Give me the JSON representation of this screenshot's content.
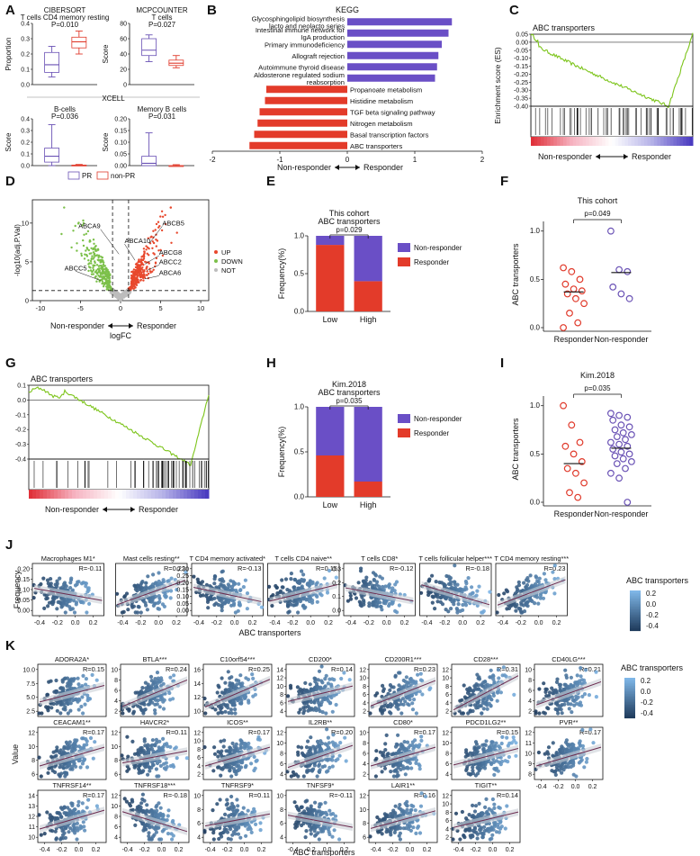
{
  "panel_letters": [
    "A",
    "B",
    "C",
    "D",
    "E",
    "F",
    "G",
    "H",
    "I",
    "J",
    "K"
  ],
  "colors": {
    "pr": "#6a52b5",
    "nonpr": "#e03a2b",
    "bar_pos": "#6a4fc6",
    "bar_neg": "#e33b2a",
    "es_line": "#7cc41a",
    "volcano_up": "#e8482d",
    "volcano_down": "#7cc04a",
    "volcano_not": "#bdbdbd",
    "scatter_dark": "#1f3b5c",
    "scatter_light": "#7fb7e8"
  },
  "panelA": {
    "boxes": [
      {
        "title1": "CIBERSORT",
        "title2": "T cells CD4 memory resting",
        "pval": "P=0.010",
        "ylabel": "Proportion",
        "ticks": [
          "0.0",
          "0.1",
          "0.2",
          "0.3",
          "0.4"
        ],
        "ylim": [
          0,
          0.4
        ],
        "stats": [
          [
            0.05,
            0.08,
            0.13,
            0.21,
            0.25
          ],
          [
            0.2,
            0.24,
            0.28,
            0.31,
            0.35
          ]
        ]
      },
      {
        "title1": "MCPCOUNTER",
        "title2": "T cells",
        "pval": "P=0.027",
        "ylabel": "Score",
        "ticks": [
          "0",
          "20",
          "40",
          "60",
          "80"
        ],
        "ylim": [
          0,
          80
        ],
        "stats": [
          [
            30,
            38,
            45,
            60,
            65
          ],
          [
            22,
            25,
            28,
            32,
            38
          ]
        ]
      },
      {
        "title1": "B-cells",
        "title2": "",
        "pval": "P=0.036",
        "ylabel": "Score",
        "ticks": [
          "0.0",
          "0.1",
          "0.2",
          "0.3",
          "0.4"
        ],
        "ylim": [
          0,
          0.4
        ],
        "stats": [
          [
            0.0,
            0.03,
            0.08,
            0.15,
            0.35
          ],
          [
            0.0,
            0.0,
            0.0,
            0.005,
            0.01
          ]
        ]
      },
      {
        "title1": "Memory B cells",
        "title2": "",
        "pval": "P=0.031",
        "ylabel": "Score",
        "ticks": [
          "0.00",
          "0.05",
          "0.10",
          "0.15",
          "0.20"
        ],
        "ylim": [
          0,
          0.2
        ],
        "stats": [
          [
            0.0,
            0.0,
            0.01,
            0.04,
            0.14
          ],
          [
            0.0,
            0.0,
            0.0,
            0.0,
            0.004
          ]
        ]
      }
    ],
    "xcell_label": "XCELL",
    "legend": [
      "PR",
      "non-PR"
    ]
  },
  "panelB": {
    "title": "KEGG",
    "xticks": [
      "-2",
      "-1",
      "0",
      "1",
      "2"
    ],
    "xlim": [
      -2,
      2
    ],
    "arrow_left": "Non-responder",
    "arrow_right": "Responder",
    "chart_data": {
      "type": "bar",
      "categories": [
        "Glycosphingolipid biosynthesis lacto and neolacto series",
        "Intestinal immune network for IgA production",
        "Primary immunodeficiency",
        "Allograft rejection",
        "Autoimmune thyroid disease",
        "Aldosterone regulated sodium reabsorption",
        "Propanoate metabolism",
        "Histidine metabolism",
        "TGF beta signaling pathway",
        "Nitrogen metabolism",
        "Basal transcription factors",
        "ABC transporters"
      ],
      "values": [
        1.55,
        1.5,
        1.4,
        1.35,
        1.33,
        1.3,
        -1.2,
        -1.22,
        -1.3,
        -1.33,
        -1.38,
        -1.45
      ]
    },
    "labels": [
      [
        "Glycosphingolipid biosynthesis",
        "lacto and neolacto series"
      ],
      [
        "Intestinal immune network for",
        "IgA production"
      ],
      [
        "Primary immunodeficiency"
      ],
      [
        "Allograft rejection"
      ],
      [
        "Autoimmune thyroid disease"
      ],
      [
        "Aldosterone regulated sodium",
        "reabsorption"
      ],
      [
        "Propanoate metabolism"
      ],
      [
        "Histidine metabolism"
      ],
      [
        "TGF beta signaling pathway"
      ],
      [
        "Nitrogen metabolism"
      ],
      [
        "Basal transcription factors"
      ],
      [
        "ABC transporters"
      ]
    ]
  },
  "panelC": {
    "title": "ABC transporters",
    "ylabel": "Enrichment score (ES)",
    "ticks": [
      "0.05",
      "0.00",
      "-0.05",
      "-0.10",
      "-0.15",
      "-0.20",
      "-0.25",
      "-0.30",
      "-0.35",
      "-0.40"
    ],
    "left": "Non-responder",
    "right": "Responder"
  },
  "panelD": {
    "ylabel": "-log10(adj.P.Val)",
    "xlabel": "logFC",
    "xticks": [
      "-10",
      "-5",
      "0",
      "5",
      "10"
    ],
    "yticks": [
      "0",
      "5",
      "10"
    ],
    "genes": [
      "ABCA9",
      "ABCA10",
      "ABCB5",
      "ABCG8",
      "ABCC2",
      "ABCA6",
      "ABCC5"
    ],
    "legend": [
      "UP",
      "DOWN",
      "NOT"
    ],
    "left": "Non-responder",
    "right": "Responder"
  },
  "panelE": {
    "title1": "This cohort",
    "title2": "ABC transporters",
    "pval": "p=0.029",
    "ylabel": "Frequency(%)",
    "yticks": [
      "0.0",
      "0.5",
      "1.0"
    ],
    "chart_data": {
      "type": "bar",
      "categories": [
        "Low",
        "High"
      ],
      "series": [
        {
          "name": "Responder",
          "values": [
            0.88,
            0.4
          ]
        },
        {
          "name": "Non-responder",
          "values": [
            0.12,
            0.6
          ]
        }
      ]
    },
    "legend": [
      "Non-responder",
      "Responder"
    ]
  },
  "panelF": {
    "title": "This cohort",
    "pval": "p=0.049",
    "ylabel": "ABC transporters",
    "yticks": [
      "0.0",
      "0.5",
      "1.0"
    ],
    "groups": [
      "Responder",
      "Non-responder"
    ],
    "chart_data": {
      "type": "scatter",
      "series": [
        {
          "name": "Responder",
          "values": [
            0.62,
            0.58,
            0.5,
            0.45,
            0.4,
            0.38,
            0.35,
            0.3,
            0.25,
            0.15,
            0.05,
            0.0
          ],
          "median": 0.37
        },
        {
          "name": "Non-responder",
          "values": [
            1.0,
            0.6,
            0.58,
            0.42,
            0.35,
            0.3
          ],
          "median": 0.57
        }
      ]
    }
  },
  "panelG": {
    "title": "ABC transporters",
    "ylabel": "Enrichment score (ES)",
    "ticks": [
      "0.1",
      "0.0",
      "-0.1",
      "-0.2",
      "-0.3",
      "-0.4"
    ],
    "left": "Non-responder",
    "right": "Responder"
  },
  "panelH": {
    "title1": "Kim.2018",
    "title2": "ABC transporters",
    "pval": "p=0.035",
    "ylabel": "Frequency(%)",
    "yticks": [
      "0.0",
      "0.5",
      "1.0"
    ],
    "chart_data": {
      "type": "bar",
      "categories": [
        "Low",
        "High"
      ],
      "series": [
        {
          "name": "Responder",
          "values": [
            0.46,
            0.17
          ]
        },
        {
          "name": "Non-responder",
          "values": [
            0.54,
            0.83
          ]
        }
      ]
    },
    "legend": [
      "Non-responder",
      "Responder"
    ]
  },
  "panelI": {
    "title": "Kim.2018",
    "pval": "p=0.035",
    "ylabel": "ABC transporters",
    "yticks": [
      "0.0",
      "0.5",
      "1.0"
    ],
    "groups": [
      "Responder",
      "Non-responder"
    ],
    "chart_data": {
      "type": "scatter",
      "series": [
        {
          "name": "Responder",
          "values": [
            1.0,
            0.8,
            0.62,
            0.58,
            0.5,
            0.42,
            0.35,
            0.3,
            0.2,
            0.1,
            0.05
          ],
          "median": 0.4
        },
        {
          "name": "Non-responder",
          "values": [
            0.92,
            0.9,
            0.88,
            0.85,
            0.8,
            0.78,
            0.75,
            0.72,
            0.7,
            0.68,
            0.65,
            0.62,
            0.6,
            0.58,
            0.55,
            0.52,
            0.5,
            0.48,
            0.45,
            0.42,
            0.4,
            0.35,
            0.3,
            0.25,
            0.0
          ],
          "median": 0.56
        }
      ]
    }
  },
  "panelJ": {
    "ylabel": "Frequency",
    "xlabel": "ABC transporters",
    "xticks": [
      "-0.4",
      "-0.2",
      "0.0",
      "0.2"
    ],
    "colorbar_title": "ABC transporters",
    "colorbar_ticks": [
      "0.2",
      "0.0",
      "-0.2",
      "-0.4"
    ],
    "plots": [
      {
        "title": "Macrophages M1*",
        "r": "R=-0.11",
        "yticks": [
          "0.00",
          "0.05",
          "0.10",
          "0.15",
          "0.20"
        ]
      },
      {
        "title": "Mast cells resting**",
        "r": "R=0.22",
        "yticks": []
      },
      {
        "title": "T CD4 memory activated*",
        "r": "R=-0.13",
        "yticks": [
          "0.00",
          "0.05",
          "0.10",
          "0.15",
          "0.20",
          "0.25",
          "0.30"
        ]
      },
      {
        "title": "T cells CD4 naive**",
        "r": "R=0.15",
        "yticks": []
      },
      {
        "title": "T cells CD8*",
        "r": "R=-0.12",
        "yticks": [
          "0.0",
          "0.1",
          "0.2",
          "0.3"
        ]
      },
      {
        "title": "T cells follicular helper***",
        "r": "R=-0.18",
        "yticks": []
      },
      {
        "title": "T CD4 memory resting***",
        "r": "R=0.23",
        "yticks": []
      }
    ]
  },
  "panelK": {
    "ylabel": "Value",
    "xlabel": "ABC transporters",
    "xticks": [
      "-0.4",
      "-0.2",
      "0.0",
      "0.2"
    ],
    "colorbar_title": "ABC transporters",
    "colorbar_ticks": [
      "0.2",
      "0.0",
      "-0.2",
      "-0.4"
    ],
    "rows": [
      [
        {
          "title": "ADORA2A*",
          "r": "R=0.15",
          "yticks": [
            "2.5",
            "5.0",
            "7.5",
            "10.0"
          ]
        },
        {
          "title": "BTLA***",
          "r": "R=0.24",
          "yticks": [
            "2",
            "4",
            "6",
            "8",
            "10"
          ]
        },
        {
          "title": "C10orf54***",
          "r": "R=0.25",
          "yticks": [
            "10",
            "12",
            "14",
            "16"
          ]
        },
        {
          "title": "CD200*",
          "r": "R=0.14",
          "yticks": [
            "4",
            "6",
            "8",
            "10",
            "12",
            "14"
          ]
        },
        {
          "title": "CD200R1***",
          "r": "R=0.23",
          "yticks": [
            "2",
            "4",
            "6",
            "8",
            "10",
            "12"
          ]
        },
        {
          "title": "CD28***",
          "r": "R=0.31",
          "yticks": [
            "2",
            "4",
            "6",
            "8",
            "10",
            "12"
          ]
        },
        {
          "title": "CD40LG***",
          "r": "R=0.21",
          "yticks": [
            "2",
            "4",
            "6",
            "8",
            "10"
          ]
        }
      ],
      [
        {
          "title": "CEACAM1**",
          "r": "R=0.17",
          "yticks": [
            "6",
            "8",
            "10",
            "12"
          ]
        },
        {
          "title": "HAVCR2*",
          "r": "R=0.11",
          "yticks": [
            "6",
            "8",
            "10",
            "12"
          ]
        },
        {
          "title": "ICOS**",
          "r": "R=0.17",
          "yticks": [
            "2",
            "4",
            "6",
            "8",
            "10",
            "12"
          ]
        },
        {
          "title": "IL2RB**",
          "r": "R=0.20",
          "yticks": [
            "4",
            "6",
            "8",
            "10",
            "12"
          ]
        },
        {
          "title": "CD80*",
          "r": "R=0.17",
          "yticks": [
            "2",
            "4",
            "6",
            "8",
            "10"
          ]
        },
        {
          "title": "PDCD1LG2**",
          "r": "R=0.15",
          "yticks": [
            "4",
            "6",
            "8",
            "10",
            "12"
          ]
        },
        {
          "title": "PVR**",
          "r": "R=0.17",
          "yticks": [
            "8",
            "9",
            "10",
            "11",
            "12"
          ]
        }
      ],
      [
        {
          "title": "TNFRSF14**",
          "r": "R=0.17",
          "yticks": [
            "10",
            "11",
            "12",
            "13",
            "14"
          ]
        },
        {
          "title": "TNFRSF18***",
          "r": "R=-0.18",
          "yticks": [
            "4",
            "6",
            "8",
            "10",
            "12"
          ]
        },
        {
          "title": "TNFRSF9*",
          "r": "R=0.11",
          "yticks": [
            "4",
            "6",
            "8",
            "10"
          ]
        },
        {
          "title": "TNFSF9*",
          "r": "R=-0.11",
          "yticks": [
            "4",
            "6",
            "8",
            "10"
          ]
        },
        {
          "title": "LAIR1**",
          "r": "R=0.16",
          "yticks": [
            "6",
            "8",
            "10",
            "12"
          ]
        },
        {
          "title": "TIGIT**",
          "r": "R=0.14",
          "yticks": [
            "2",
            "4",
            "6",
            "8",
            "10",
            "12"
          ]
        }
      ]
    ]
  }
}
